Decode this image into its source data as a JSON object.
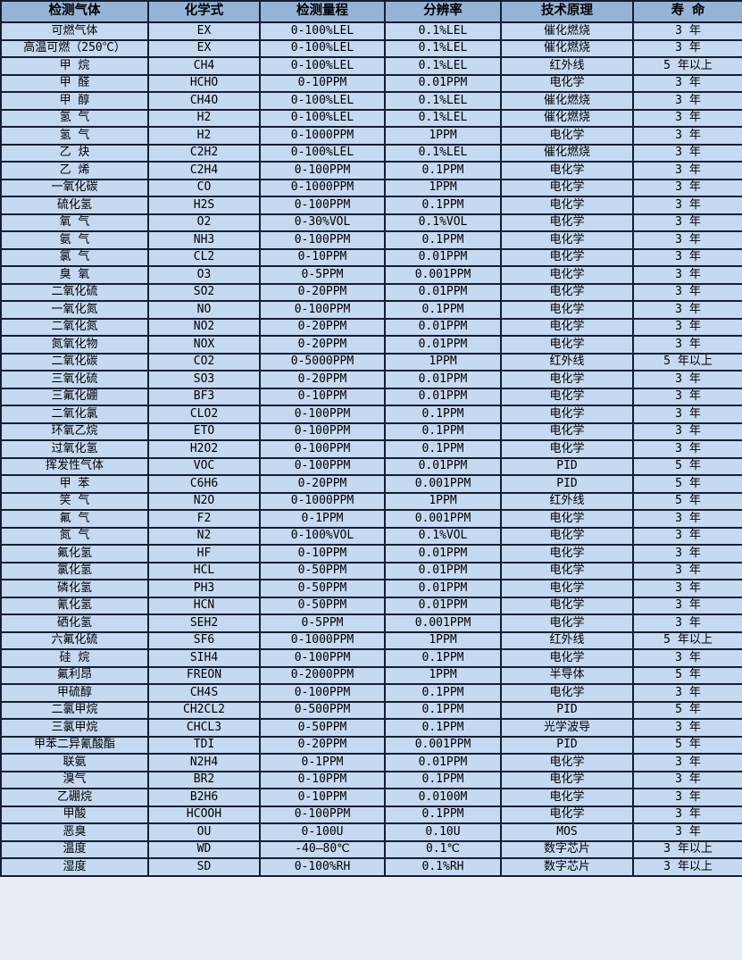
{
  "table": {
    "name": "gas-sensor-specification-table",
    "colors": {
      "header_bg": "#95b3d7",
      "row_bg": "#c5d9f1",
      "border": "#141e30",
      "text": "#000000"
    },
    "columns": [
      "检测气体",
      "化学式",
      "检测量程",
      "分辨率",
      "技术原理",
      "寿 命"
    ],
    "rows": [
      [
        "可燃气体",
        "EX",
        "0-100%LEL",
        "0.1%LEL",
        "催化燃烧",
        "3 年"
      ],
      [
        "高温可燃（250℃）",
        "EX",
        "0-100%LEL",
        "0.1%LEL",
        "催化燃烧",
        "3 年"
      ],
      [
        "甲 烷",
        "CH4",
        "0-100%LEL",
        "0.1%LEL",
        "红外线",
        "5 年以上"
      ],
      [
        "甲 醛",
        "HCHO",
        "0-10PPM",
        "0.01PPM",
        "电化学",
        "3 年"
      ],
      [
        "甲 醇",
        "CH4O",
        "0-100%LEL",
        "0.1%LEL",
        "催化燃烧",
        "3 年"
      ],
      [
        "氢 气",
        "H2",
        "0-100%LEL",
        "0.1%LEL",
        "催化燃烧",
        "3 年"
      ],
      [
        "氢 气",
        "H2",
        "0-1000PPM",
        "1PPM",
        "电化学",
        "3 年"
      ],
      [
        "乙 炔",
        "C2H2",
        "0-100%LEL",
        "0.1%LEL",
        "催化燃烧",
        "3 年"
      ],
      [
        "乙 烯",
        "C2H4",
        "0-100PPM",
        "0.1PPM",
        "电化学",
        "3 年"
      ],
      [
        "一氧化碳",
        "CO",
        "0-1000PPM",
        "1PPM",
        "电化学",
        "3 年"
      ],
      [
        "硫化氢",
        "H2S",
        "0-100PPM",
        "0.1PPM",
        "电化学",
        "3 年"
      ],
      [
        "氧 气",
        "O2",
        "0-30%VOL",
        "0.1%VOL",
        "电化学",
        "3 年"
      ],
      [
        "氨 气",
        "NH3",
        "0-100PPM",
        "0.1PPM",
        "电化学",
        "3 年"
      ],
      [
        "氯 气",
        "CL2",
        "0-10PPM",
        "0.01PPM",
        "电化学",
        "3 年"
      ],
      [
        "臭 氧",
        "O3",
        "0-5PPM",
        "0.001PPM",
        "电化学",
        "3 年"
      ],
      [
        "二氧化硫",
        "SO2",
        "0-20PPM",
        "0.01PPM",
        "电化学",
        "3 年"
      ],
      [
        "一氧化氮",
        "NO",
        "0-100PPM",
        "0.1PPM",
        "电化学",
        "3 年"
      ],
      [
        "二氧化氮",
        "NO2",
        "0-20PPM",
        "0.01PPM",
        "电化学",
        "3 年"
      ],
      [
        "氮氧化物",
        "NOX",
        "0-20PPM",
        "0.01PPM",
        "电化学",
        "3 年"
      ],
      [
        "二氧化碳",
        "CO2",
        "0-5000PPM",
        "1PPM",
        "红外线",
        "5 年以上"
      ],
      [
        "三氧化硫",
        "SO3",
        "0-20PPM",
        "0.01PPM",
        "电化学",
        "3 年"
      ],
      [
        "三氟化硼",
        "BF3",
        "0-10PPM",
        "0.01PPM",
        "电化学",
        "3 年"
      ],
      [
        "二氧化氯",
        "CLO2",
        "0-100PPM",
        "0.1PPM",
        "电化学",
        "3 年"
      ],
      [
        "环氧乙烷",
        "ETO",
        "0-100PPM",
        "0.1PPM",
        "电化学",
        "3 年"
      ],
      [
        "过氧化氢",
        "H2O2",
        "0-100PPM",
        "0.1PPM",
        "电化学",
        "3 年"
      ],
      [
        "挥发性气体",
        "VOC",
        "0-100PPM",
        "0.01PPM",
        "PID",
        "5 年"
      ],
      [
        "甲 苯",
        "C6H6",
        "0-20PPM",
        "0.001PPM",
        "PID",
        "5 年"
      ],
      [
        "笑 气",
        "N2O",
        "0-1000PPM",
        "1PPM",
        "红外线",
        "5 年"
      ],
      [
        "氟 气",
        "F2",
        "0-1PPM",
        "0.001PPM",
        "电化学",
        "3 年"
      ],
      [
        "氮 气",
        "N2",
        "0-100%VOL",
        "0.1%VOL",
        "电化学",
        "3 年"
      ],
      [
        "氟化氢",
        "HF",
        "0-10PPM",
        "0.01PPM",
        "电化学",
        "3 年"
      ],
      [
        "氯化氢",
        "HCL",
        "0-50PPM",
        "0.01PPM",
        "电化学",
        "3 年"
      ],
      [
        "磷化氢",
        "PH3",
        "0-50PPM",
        "0.01PPM",
        "电化学",
        "3 年"
      ],
      [
        "氰化氢",
        "HCN",
        "0-50PPM",
        "0.01PPM",
        "电化学",
        "3 年"
      ],
      [
        "硒化氢",
        "SEH2",
        "0-5PPM",
        "0.001PPM",
        "电化学",
        "3 年"
      ],
      [
        "六氟化硫",
        "SF6",
        "0-1000PPM",
        "1PPM",
        "红外线",
        "5 年以上"
      ],
      [
        "硅 烷",
        "SIH4",
        "0-100PPM",
        "0.1PPM",
        "电化学",
        "3 年"
      ],
      [
        "氟利昂",
        "FREON",
        "0-2000PPM",
        "1PPM",
        "半导体",
        "5 年"
      ],
      [
        "甲硫醇",
        "CH4S",
        "0-100PPM",
        "0.1PPM",
        "电化学",
        "3 年"
      ],
      [
        "二氯甲烷",
        "CH2CL2",
        "0-500PPM",
        "0.1PPM",
        "PID",
        "5 年"
      ],
      [
        "三氯甲烷",
        "CHCL3",
        "0-50PPM",
        "0.1PPM",
        "光学波导",
        "3 年"
      ],
      [
        "甲苯二异氰酸酯",
        "TDI",
        "0-20PPM",
        "0.001PPM",
        "PID",
        "5 年"
      ],
      [
        "联氨",
        "N2H4",
        "0-1PPM",
        "0.01PPM",
        "电化学",
        "3 年"
      ],
      [
        "溴气",
        "BR2",
        "0-10PPM",
        "0.1PPM",
        "电化学",
        "3 年"
      ],
      [
        "乙硼烷",
        "B2H6",
        "0-10PPM",
        "0.0100M",
        "电化学",
        "3 年"
      ],
      [
        "甲酸",
        "HCOOH",
        "0-100PPM",
        "0.1PPM",
        "电化学",
        "3 年"
      ],
      [
        "恶臭",
        "OU",
        "0-100U",
        "0.10U",
        "MOS",
        "3 年"
      ],
      [
        "温度",
        "WD",
        "-40—80℃",
        "0.1℃",
        "数字芯片",
        "3 年以上"
      ],
      [
        "湿度",
        "SD",
        "0-100%RH",
        "0.1%RH",
        "数字芯片",
        "3 年以上"
      ]
    ]
  }
}
